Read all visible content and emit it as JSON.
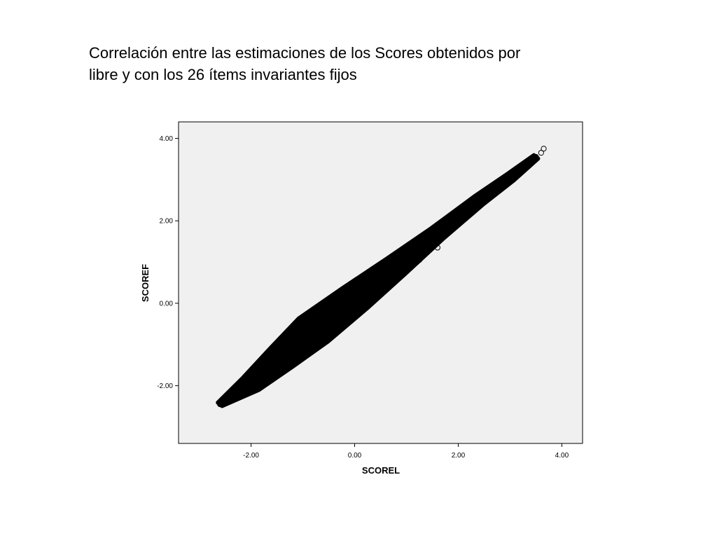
{
  "slide": {
    "title_line1": "Correlación entre las estimaciones de los Scores obtenidos por",
    "title_line2": "libre y con los 26 ítems invariantes fijos"
  },
  "colors": {
    "plot_background": "#f0f0f0",
    "marker_stroke": "#000000",
    "axis": "#000000"
  },
  "chart_data": {
    "type": "scatter",
    "xlabel": "SCOREL",
    "ylabel": "SCOREF",
    "xlim": [
      -3.4,
      4.4
    ],
    "ylim": [
      -3.4,
      4.4
    ],
    "x_ticks": [
      -2.0,
      0.0,
      2.0,
      4.0
    ],
    "x_tick_labels": [
      "-2.00",
      "0.00",
      "2.00",
      "4.00"
    ],
    "y_ticks": [
      -2.0,
      0.0,
      2.0,
      4.0
    ],
    "y_tick_labels": [
      "-2.00",
      "0.00",
      "2.00",
      "4.00"
    ],
    "marker": "open-circle",
    "grid": false,
    "points": [
      [
        -2.6,
        -2.45
      ],
      [
        -2.5,
        -2.4
      ],
      [
        -2.4,
        -2.3
      ],
      [
        -2.2,
        -2.15
      ],
      [
        -2.0,
        -1.95
      ],
      [
        -1.8,
        -1.75
      ],
      [
        -1.6,
        -1.55
      ],
      [
        -1.4,
        -1.35
      ],
      [
        -1.2,
        -1.15
      ],
      [
        -1.0,
        -0.9
      ],
      [
        -0.8,
        -0.7
      ],
      [
        -0.6,
        -0.5
      ],
      [
        -0.4,
        -0.3
      ],
      [
        -0.2,
        -0.1
      ],
      [
        0.0,
        0.1
      ],
      [
        0.2,
        0.3
      ],
      [
        0.4,
        0.5
      ],
      [
        0.6,
        0.7
      ],
      [
        0.8,
        0.9
      ],
      [
        1.0,
        1.1
      ],
      [
        1.2,
        1.3
      ],
      [
        1.4,
        1.5
      ],
      [
        1.6,
        1.7
      ],
      [
        1.8,
        1.9
      ],
      [
        2.0,
        2.1
      ],
      [
        2.2,
        2.3
      ],
      [
        2.4,
        2.5
      ],
      [
        2.6,
        2.7
      ],
      [
        2.8,
        2.85
      ],
      [
        3.0,
        3.05
      ],
      [
        3.2,
        3.25
      ],
      [
        3.4,
        3.45
      ],
      [
        3.5,
        3.55
      ],
      [
        3.6,
        3.65
      ],
      [
        3.65,
        3.75
      ],
      [
        -1.3,
        -1.05
      ],
      [
        -1.1,
        -0.85
      ],
      [
        -0.9,
        -0.6
      ],
      [
        -0.5,
        -0.85
      ],
      [
        -0.3,
        -0.65
      ],
      [
        0.3,
        0.0
      ],
      [
        0.6,
        0.35
      ],
      [
        0.8,
        0.55
      ],
      [
        1.2,
        1.0
      ],
      [
        1.25,
        1.05
      ],
      [
        1.35,
        1.2
      ],
      [
        1.6,
        1.35
      ],
      [
        1.9,
        1.8
      ],
      [
        -1.9,
        -1.6
      ],
      [
        -0.1,
        -0.35
      ],
      [
        0.9,
        1.15
      ],
      [
        2.3,
        2.5
      ],
      [
        -2.2,
        -2.1
      ],
      [
        -1.5,
        -1.45
      ],
      [
        -0.7,
        -0.55
      ],
      [
        0.1,
        0.05
      ],
      [
        0.5,
        0.4
      ],
      [
        1.1,
        0.95
      ],
      [
        1.5,
        1.6
      ],
      [
        2.6,
        2.8
      ]
    ]
  }
}
